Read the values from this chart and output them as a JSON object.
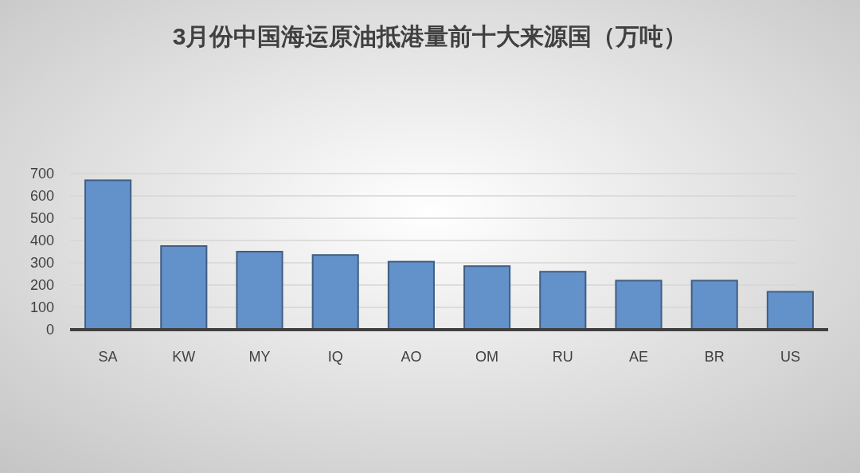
{
  "chart_data": {
    "type": "bar",
    "title": "3月份中国海运原油抵港量前十大来源国（万吨）",
    "categories": [
      "SA",
      "KW",
      "MY",
      "IQ",
      "AO",
      "OM",
      "RU",
      "AE",
      "BR",
      "US"
    ],
    "values": [
      670,
      375,
      350,
      335,
      305,
      285,
      260,
      220,
      220,
      170
    ],
    "color": "#6391c9",
    "ylim": [
      0,
      700
    ],
    "yticks": [
      0,
      100,
      200,
      300,
      400,
      500,
      600,
      700
    ],
    "grid": "y"
  }
}
